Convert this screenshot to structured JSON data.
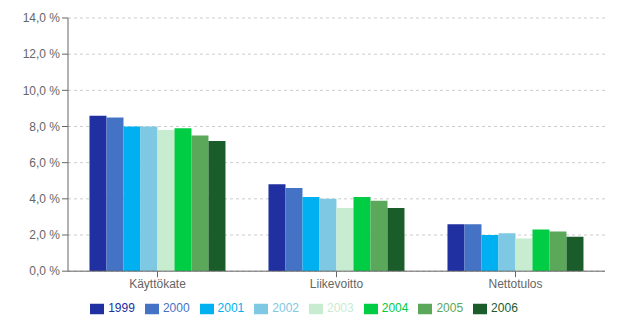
{
  "chart_data": {
    "type": "bar",
    "categories": [
      "Käyttökate",
      "Liikevoitto",
      "Nettotulos"
    ],
    "series": [
      {
        "name": "1999",
        "color": "#2030a0",
        "values": [
          0.086,
          0.048,
          0.026
        ]
      },
      {
        "name": "2000",
        "color": "#4472c4",
        "values": [
          0.085,
          0.046,
          0.026
        ]
      },
      {
        "name": "2001",
        "color": "#00b0f0",
        "values": [
          0.08,
          0.041,
          0.02
        ]
      },
      {
        "name": "2002",
        "color": "#7ec8e3",
        "values": [
          0.08,
          0.04,
          0.021
        ]
      },
      {
        "name": "2003",
        "color": "#c8ecd0",
        "values": [
          0.078,
          0.035,
          0.018
        ]
      },
      {
        "name": "2004",
        "color": "#00cc44",
        "values": [
          0.079,
          0.041,
          0.023
        ]
      },
      {
        "name": "2005",
        "color": "#5ba85b",
        "values": [
          0.075,
          0.039,
          0.022
        ]
      },
      {
        "name": "2006",
        "color": "#1a5c2a",
        "values": [
          0.072,
          0.035,
          0.019
        ]
      }
    ],
    "ylim": [
      0,
      0.14
    ],
    "yticks": [
      {
        "value": 0.0,
        "label": "0,0 %"
      },
      {
        "value": 0.02,
        "label": "2,0 %"
      },
      {
        "value": 0.04,
        "label": "4,0 %"
      },
      {
        "value": 0.06,
        "label": "6,0 %"
      },
      {
        "value": 0.08,
        "label": "8,0 %"
      },
      {
        "value": 0.1,
        "label": "10,0 %"
      },
      {
        "value": 0.12,
        "label": "12,0 %"
      },
      {
        "value": 0.14,
        "label": "14,0 %"
      }
    ],
    "grid": true,
    "legend": "bottom"
  }
}
